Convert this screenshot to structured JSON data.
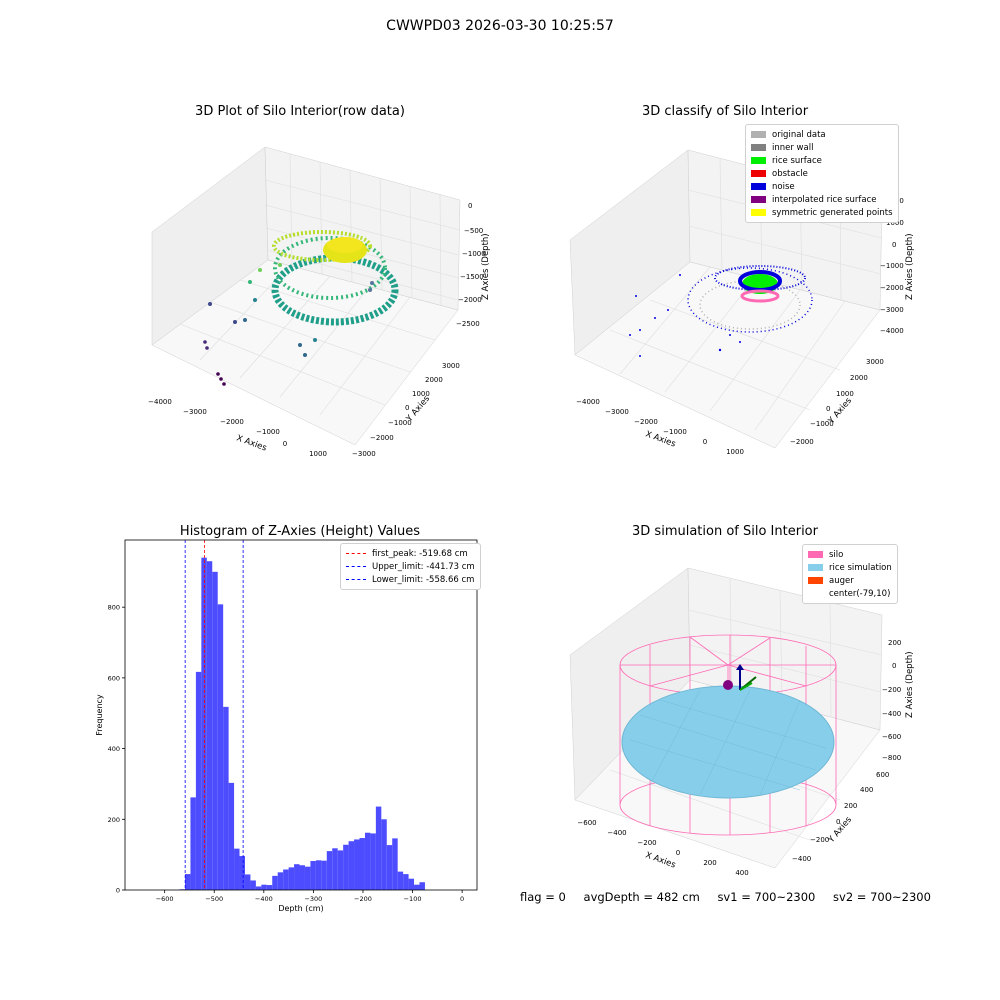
{
  "figure": {
    "suptitle": "CWWPD03 2026-03-30 10:25:57",
    "status": {
      "flag": "flag = 0",
      "avg_depth": "avgDepth = 482 cm",
      "sv1": "sv1 = 700~2300",
      "sv2": "sv2 = 700~2300"
    }
  },
  "panels": [
    {
      "title": "3D Plot of Silo Interior(row data)",
      "xlabel": "X Axies",
      "ylabel": "Y Axies",
      "zlabel": "Z Axies (Depth)",
      "xticks": [
        "−4000",
        "−3000",
        "−2000",
        "−1000",
        "0",
        "1000"
      ],
      "yticks": [
        "3000",
        "2000",
        "1000",
        "0",
        "−1000",
        "−2000",
        "−3000"
      ],
      "zticks": [
        "0",
        "−500",
        "−1000",
        "−1500",
        "−2000",
        "−2500"
      ]
    },
    {
      "title": "3D classify of Silo Interior",
      "xlabel": "X Axies",
      "ylabel": "Y Axies",
      "zlabel": "Z Axies (Depth)",
      "xticks": [
        "−4000",
        "−3000",
        "−2000",
        "−1000",
        "0",
        "1000"
      ],
      "yticks": [
        "3000",
        "2000",
        "1000",
        "0",
        "−1000",
        "−2000"
      ],
      "zticks": [
        "2000",
        "1000",
        "0",
        "−1000",
        "−2000",
        "−3000",
        "−4000"
      ],
      "legend": [
        {
          "label": "original data",
          "color": "#b0b0b0"
        },
        {
          "label": "inner wall",
          "color": "#808080"
        },
        {
          "label": "rice surface",
          "color": "#00ee00"
        },
        {
          "label": "obstacle",
          "color": "#ee0000"
        },
        {
          "label": "noise",
          "color": "#0000dd"
        },
        {
          "label": "interpolated rice surface",
          "color": "#800080"
        },
        {
          "label": "symmetric generated points",
          "color": "#ffff00"
        }
      ]
    },
    {
      "title": "3D simulation of Silo Interior",
      "xlabel": "X Axies",
      "ylabel": "Y Axies",
      "zlabel": "Z Axies (Depth)",
      "xticks": [
        "−600",
        "−400",
        "−200",
        "0",
        "200",
        "400"
      ],
      "yticks": [
        "600",
        "400",
        "200",
        "0",
        "−200",
        "−400"
      ],
      "zticks": [
        "200",
        "0",
        "−200",
        "−400",
        "−600",
        "−800"
      ],
      "legend": [
        {
          "label": "silo",
          "color": "#ff69b4"
        },
        {
          "label": "rice simulation",
          "color": "#87ceeb"
        },
        {
          "label": "auger",
          "color": "#ff4500"
        },
        {
          "label": "center(-79,10)",
          "color": "#ffffff"
        }
      ]
    }
  ],
  "chart_data": {
    "type": "bar",
    "title": "Histogram of Z-Axies (Height) Values",
    "xlabel": "Depth (cm)",
    "ylabel": "Frequency",
    "xlim": [
      -680,
      30
    ],
    "ylim": [
      0,
      990
    ],
    "xticks": [
      -600,
      -500,
      -400,
      -300,
      -200,
      -100,
      0
    ],
    "yticks": [
      0,
      200,
      400,
      600,
      800
    ],
    "bin_width": 11,
    "bins": [
      {
        "x": -570,
        "count": 2
      },
      {
        "x": -559,
        "count": 45
      },
      {
        "x": -548,
        "count": 262
      },
      {
        "x": -537,
        "count": 617
      },
      {
        "x": -526,
        "count": 940
      },
      {
        "x": -515,
        "count": 930
      },
      {
        "x": -504,
        "count": 900
      },
      {
        "x": -493,
        "count": 808
      },
      {
        "x": -482,
        "count": 518
      },
      {
        "x": -471,
        "count": 303
      },
      {
        "x": -460,
        "count": 117
      },
      {
        "x": -449,
        "count": 96
      },
      {
        "x": -438,
        "count": 44
      },
      {
        "x": -427,
        "count": 27
      },
      {
        "x": -416,
        "count": 10
      },
      {
        "x": -405,
        "count": 15
      },
      {
        "x": -394,
        "count": 14
      },
      {
        "x": -383,
        "count": 40
      },
      {
        "x": -372,
        "count": 50
      },
      {
        "x": -361,
        "count": 58
      },
      {
        "x": -350,
        "count": 64
      },
      {
        "x": -339,
        "count": 73
      },
      {
        "x": -328,
        "count": 70
      },
      {
        "x": -317,
        "count": 66
      },
      {
        "x": -306,
        "count": 82
      },
      {
        "x": -295,
        "count": 84
      },
      {
        "x": -284,
        "count": 83
      },
      {
        "x": -273,
        "count": 110
      },
      {
        "x": -262,
        "count": 118
      },
      {
        "x": -251,
        "count": 112
      },
      {
        "x": -240,
        "count": 128
      },
      {
        "x": -229,
        "count": 138
      },
      {
        "x": -218,
        "count": 143
      },
      {
        "x": -207,
        "count": 147
      },
      {
        "x": -196,
        "count": 162
      },
      {
        "x": -185,
        "count": 160
      },
      {
        "x": -174,
        "count": 236
      },
      {
        "x": -163,
        "count": 200
      },
      {
        "x": -152,
        "count": 127
      },
      {
        "x": -141,
        "count": 146
      },
      {
        "x": -130,
        "count": 52
      },
      {
        "x": -119,
        "count": 45
      },
      {
        "x": -108,
        "count": 32
      },
      {
        "x": -97,
        "count": 15
      },
      {
        "x": -86,
        "count": 22
      }
    ],
    "lines": [
      {
        "label": "first_peak: -519.68 cm",
        "x": -519.68,
        "color": "#ff0000"
      },
      {
        "label": "Upper_limit: -441.73 cm",
        "x": -441.73,
        "color": "#0000ff"
      },
      {
        "label": "Lower_limit: -558.66 cm",
        "x": -558.66,
        "color": "#0000ff"
      }
    ],
    "bar_color": "#4d4dff",
    "legend_position": "upper right"
  }
}
